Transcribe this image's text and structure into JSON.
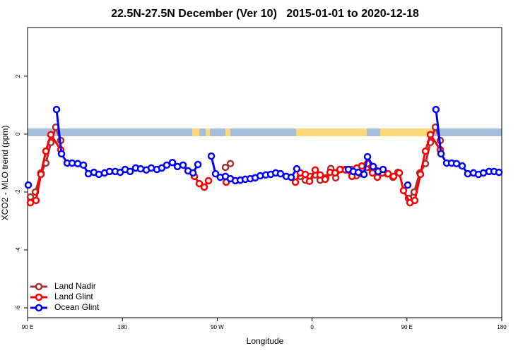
{
  "chart_data": {
    "type": "line",
    "title": "22.5N-27.5N December (Ver 10)   2015-01-01 to 2020-12-18",
    "xlabel": "Longitude",
    "ylabel": "XCO2 - MLO trend (ppm)",
    "xlim": [
      90,
      540
    ],
    "ylim": [
      -6.34,
      3.68
    ],
    "xticks": [
      {
        "value": 90,
        "label": "90 E"
      },
      {
        "value": 180,
        "label": "180"
      },
      {
        "value": 270,
        "label": "90 W"
      },
      {
        "value": 360,
        "label": "0"
      },
      {
        "value": 450,
        "label": "90 E"
      },
      {
        "value": 540,
        "label": "180"
      }
    ],
    "yticks": [
      -6,
      -4,
      -2,
      0,
      2
    ],
    "legend": "bottomleft",
    "series": [
      {
        "name": "Land Nadir",
        "color": "#a83232",
        "x": [
          92.7,
          97.4,
          102.7,
          107.4,
          112.1,
          116.8,
          121.5,
          null,
          277.8,
          282.5,
          null,
          348.9,
          353.6,
          358.3,
          363,
          367.7,
          373.1,
          377.8,
          382.5,
          387.1,
          391.8,
          397.2,
          401.9,
          406.6,
          412,
          417.3,
          422,
          426.7,
          431.4,
          436.8,
          441.5,
          null,
          451.5,
          456.9,
          462.3,
          467.6,
          472.3,
          477,
          481.7
        ],
        "values": [
          -2.17,
          -2.0,
          -1.34,
          -1.0,
          -0.29,
          0.24,
          -0.22,
          null,
          -1.15,
          -1.02,
          null,
          -1.46,
          -1.59,
          -1.46,
          -1.41,
          -1.59,
          -1.51,
          -1.19,
          -1.51,
          -1.22,
          -1.22,
          -1.22,
          -1.44,
          -1.37,
          -1.15,
          -1.29,
          -1.27,
          -1.27,
          -1.37,
          -1.49,
          -1.32,
          null,
          -2.22,
          -2.0,
          -1.34,
          -1.02,
          -0.29,
          0.24,
          -0.22
        ]
      },
      {
        "name": "Land Glint",
        "color": "#ff0000",
        "x": [
          92.7,
          98,
          102.7,
          107.4,
          112.1,
          121.5,
          null,
          248.3,
          253,
          257.7,
          261.7,
          null,
          278.5,
          null,
          344.2,
          348.9,
          353.6,
          357.6,
          363,
          367.7,
          372.4,
          377.1,
          381.8,
          386.5,
          391.8,
          397.9,
          402.5,
          407.2,
          412.6,
          417.3,
          422,
          426.7,
          432.1,
          437.4,
          442.8,
          446.8,
          452.9,
          457.5,
          462.9,
          467.6,
          472.3,
          481.7
        ],
        "values": [
          -2.37,
          -2.29,
          -1.39,
          -0.59,
          -0.02,
          -0.54,
          null,
          -1.46,
          -1.71,
          -1.83,
          -1.61,
          null,
          -1.66,
          null,
          -1.66,
          -1.34,
          -1.39,
          -1.63,
          -1.24,
          -1.41,
          -1.56,
          -1.32,
          -1.34,
          -1.22,
          -1.24,
          -1.46,
          -1.17,
          -1.1,
          -1.02,
          -1.34,
          -1.49,
          -1.34,
          -1.37,
          -1.46,
          -1.34,
          -1.95,
          -2.37,
          -2.29,
          -1.39,
          -0.59,
          -0.02,
          -0.54
        ]
      },
      {
        "name": "Ocean Glint",
        "color": "#0000ff",
        "x": [
          90.7,
          null,
          117.5,
          122.2,
          127.6,
          132.3,
          137.6,
          143,
          147.7,
          153,
          157.7,
          163.1,
          167.8,
          173.2,
          177.9,
          182.6,
          187.3,
          192.6,
          197.3,
          202.7,
          207.4,
          212.7,
          217.4,
          222.1,
          227.5,
          232.2,
          237.6,
          242.3,
          247,
          251.7,
          null,
          264.4,
          268.4,
          272.9,
          277.8,
          282.5,
          287.2,
          291.9,
          296.6,
          301.3,
          306,
          310.8,
          316.1,
          320.8,
          325.5,
          330.1,
          335.5,
          340.2,
          345.5,
          null,
          394.5,
          399.2,
          403.9,
          409.3,
          412.6,
          418,
          422.7,
          427.4,
          null,
          450.8,
          null,
          477.6,
          482.4,
          487.7,
          492.4,
          497.1,
          502.5,
          507.8,
          513.2,
          517.9,
          522.6,
          528,
          532.7,
          537.4
        ],
        "values": [
          -1.76,
          null,
          0.85,
          -0.68,
          -1.0,
          -1.0,
          -1.02,
          -1.07,
          -1.37,
          -1.32,
          -1.39,
          -1.34,
          -1.29,
          -1.29,
          -1.32,
          -1.22,
          -1.29,
          -1.17,
          -1.2,
          -1.24,
          -1.17,
          -1.22,
          -1.17,
          -1.07,
          -0.98,
          -1.12,
          -1.07,
          -1.27,
          -1.34,
          -1.05,
          null,
          -0.76,
          -1.37,
          -1.49,
          -1.46,
          -1.54,
          -1.61,
          -1.59,
          -1.56,
          -1.54,
          -1.51,
          -1.44,
          -1.41,
          -1.39,
          -1.34,
          -1.37,
          -1.46,
          -1.49,
          -1.2,
          null,
          -1.22,
          -1.29,
          -1.32,
          -1.39,
          -0.78,
          -1.12,
          -1.29,
          -1.22,
          null,
          -1.76,
          null,
          0.85,
          -0.68,
          -1.0,
          -1.0,
          -1.02,
          -1.1,
          -1.37,
          -1.34,
          -1.39,
          -1.34,
          -1.29,
          -1.29,
          -1.32
        ]
      }
    ]
  }
}
